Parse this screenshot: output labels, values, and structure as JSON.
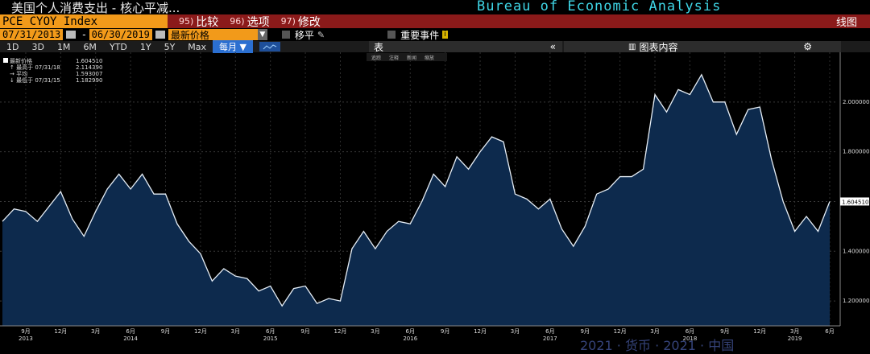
{
  "header": {
    "title": "美国个人消费支出 - 核心平减...",
    "source": "Bureau of Economic Analysis"
  },
  "command_bar": {
    "ticker": "PCE CYOY Index",
    "items": [
      {
        "num": "95)",
        "label": "比较"
      },
      {
        "num": "96)",
        "label": "选项"
      },
      {
        "num": "97)",
        "label": "修改"
      }
    ],
    "view": "线图"
  },
  "date_bar": {
    "start_date": "07/31/2013",
    "end_date": "06/30/2019",
    "field": "最新价格",
    "moving_avg": "移平",
    "events": "重要事件"
  },
  "period_bar": {
    "buttons": [
      "1D",
      "3D",
      "1M",
      "6M",
      "YTD",
      "1Y",
      "5Y",
      "Max"
    ],
    "frequency": "每月",
    "table_label": "表",
    "panel_label": "图表内容"
  },
  "toolstrip": [
    "追踪",
    "注释",
    "新闻",
    "缩放"
  ],
  "legend": [
    {
      "label": "最新价格",
      "value": "1.604510"
    },
    {
      "label": "↑ 最高于 07/31/18",
      "value": "2.114390"
    },
    {
      "label": "→ 平均",
      "value": "1.593007"
    },
    {
      "label": "↓ 最低于 07/31/15",
      "value": "1.182990"
    }
  ],
  "watermark": "2021 · 货币 · 2021 · 中国",
  "colors": {
    "accent": "#f29a1a",
    "command_bar": "#8b1a1a",
    "source_text": "#3fd6e6",
    "area_fill": "#0d2a4d",
    "line": "#e6eef6"
  },
  "chart_data": {
    "type": "area",
    "title": "PCE CYOY Index",
    "xlabel": "",
    "ylabel": "",
    "ylim": [
      1.1,
      2.2
    ],
    "y_ticks": [
      "1.200000",
      "1.400000",
      "1.600000",
      "1.800000",
      "2.000000"
    ],
    "last_value_label": "1.604510",
    "x_tick_labels": [
      {
        "i": 2,
        "label": "9月"
      },
      {
        "i": 5,
        "label": "12月"
      },
      {
        "i": 8,
        "label": "3月"
      },
      {
        "i": 11,
        "label": "6月"
      },
      {
        "i": 14,
        "label": "9月"
      },
      {
        "i": 17,
        "label": "12月"
      },
      {
        "i": 20,
        "label": "3月"
      },
      {
        "i": 23,
        "label": "6月"
      },
      {
        "i": 26,
        "label": "9月"
      },
      {
        "i": 29,
        "label": "12月"
      },
      {
        "i": 32,
        "label": "3月"
      },
      {
        "i": 35,
        "label": "6月"
      },
      {
        "i": 38,
        "label": "9月"
      },
      {
        "i": 41,
        "label": "12月"
      },
      {
        "i": 44,
        "label": "3月"
      },
      {
        "i": 47,
        "label": "6月"
      },
      {
        "i": 50,
        "label": "9月"
      },
      {
        "i": 53,
        "label": "12月"
      },
      {
        "i": 56,
        "label": "3月"
      },
      {
        "i": 59,
        "label": "6月"
      },
      {
        "i": 62,
        "label": "9月"
      },
      {
        "i": 65,
        "label": "12月"
      },
      {
        "i": 68,
        "label": "3月"
      },
      {
        "i": 71,
        "label": "6月"
      }
    ],
    "year_labels": [
      {
        "i": 2,
        "label": "2013"
      },
      {
        "i": 11,
        "label": "2014"
      },
      {
        "i": 23,
        "label": "2015"
      },
      {
        "i": 35,
        "label": "2016"
      },
      {
        "i": 47,
        "label": "2017"
      },
      {
        "i": 59,
        "label": "2018"
      },
      {
        "i": 68,
        "label": "2019"
      }
    ],
    "x": [
      "07/2013",
      "08/2013",
      "09/2013",
      "10/2013",
      "11/2013",
      "12/2013",
      "01/2014",
      "02/2014",
      "03/2014",
      "04/2014",
      "05/2014",
      "06/2014",
      "07/2014",
      "08/2014",
      "09/2014",
      "10/2014",
      "11/2014",
      "12/2014",
      "01/2015",
      "02/2015",
      "03/2015",
      "04/2015",
      "05/2015",
      "06/2015",
      "07/2015",
      "08/2015",
      "09/2015",
      "10/2015",
      "11/2015",
      "12/2015",
      "01/2016",
      "02/2016",
      "03/2016",
      "04/2016",
      "05/2016",
      "06/2016",
      "07/2016",
      "08/2016",
      "09/2016",
      "10/2016",
      "11/2016",
      "12/2016",
      "01/2017",
      "02/2017",
      "03/2017",
      "04/2017",
      "05/2017",
      "06/2017",
      "07/2017",
      "08/2017",
      "09/2017",
      "10/2017",
      "11/2017",
      "12/2017",
      "01/2018",
      "02/2018",
      "03/2018",
      "04/2018",
      "05/2018",
      "06/2018",
      "07/2018",
      "08/2018",
      "09/2018",
      "10/2018",
      "11/2018",
      "12/2018",
      "01/2019",
      "02/2019",
      "03/2019",
      "04/2019",
      "05/2019",
      "06/2019"
    ],
    "series": [
      {
        "values": [
          1.52,
          1.57,
          1.56,
          1.52,
          1.58,
          1.64,
          1.53,
          1.46,
          1.56,
          1.65,
          1.71,
          1.65,
          1.71,
          1.63,
          1.63,
          1.51,
          1.44,
          1.39,
          1.28,
          1.33,
          1.3,
          1.29,
          1.24,
          1.26,
          1.18,
          1.25,
          1.26,
          1.19,
          1.21,
          1.2,
          1.41,
          1.48,
          1.41,
          1.48,
          1.52,
          1.51,
          1.6,
          1.71,
          1.66,
          1.78,
          1.73,
          1.8,
          1.86,
          1.84,
          1.63,
          1.61,
          1.57,
          1.61,
          1.49,
          1.42,
          1.5,
          1.63,
          1.65,
          1.7,
          1.7,
          1.73,
          2.03,
          1.96,
          2.05,
          2.03,
          2.11,
          2.0,
          2.0,
          1.87,
          1.97,
          1.98,
          1.77,
          1.6,
          1.48,
          1.54,
          1.48,
          1.6
        ]
      }
    ],
    "grid": true,
    "legend_position": "top-left"
  }
}
